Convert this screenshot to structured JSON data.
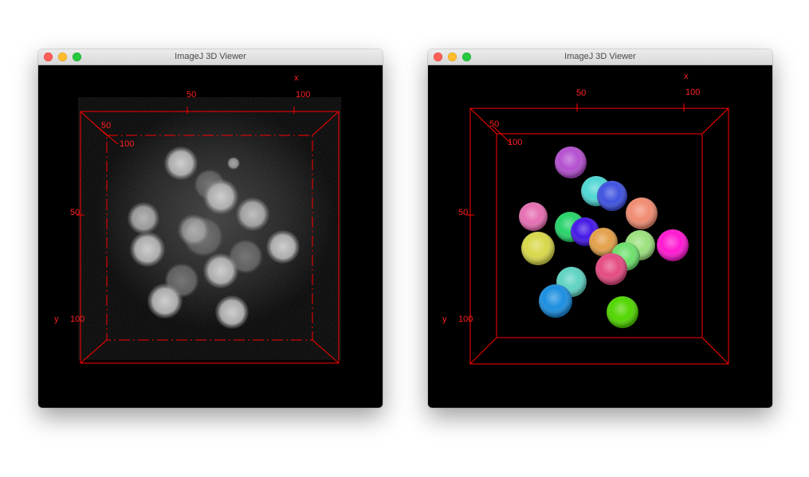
{
  "windows": [
    {
      "title": "ImageJ 3D Viewer",
      "view": "grayscale-volume-rendering",
      "axes": {
        "x_title": "x",
        "y_title": "y",
        "x_ticks": [
          "50",
          "100"
        ],
        "y_ticks": [
          "50",
          "100"
        ],
        "z_ticks": [
          "50",
          "100"
        ],
        "color": "#ff0000"
      }
    },
    {
      "title": "ImageJ 3D Viewer",
      "view": "colored-segmentation",
      "axes": {
        "x_title": "x",
        "y_title": "y",
        "x_ticks": [
          "50",
          "100"
        ],
        "y_ticks": [
          "50",
          "100"
        ],
        "z_ticks": [
          "50",
          "100"
        ],
        "color": "#ff0000"
      },
      "object_colors": [
        "#b44fd0",
        "#4fd7d3",
        "#3e52e0",
        "#e66fb2",
        "#f08c72",
        "#27d36a",
        "#4418e6",
        "#e3a04a",
        "#d8d84a",
        "#9be07c",
        "#6de06d",
        "#ff18d2",
        "#e44a82",
        "#5fd3c2",
        "#1b8ee0",
        "#51d600"
      ]
    }
  ]
}
